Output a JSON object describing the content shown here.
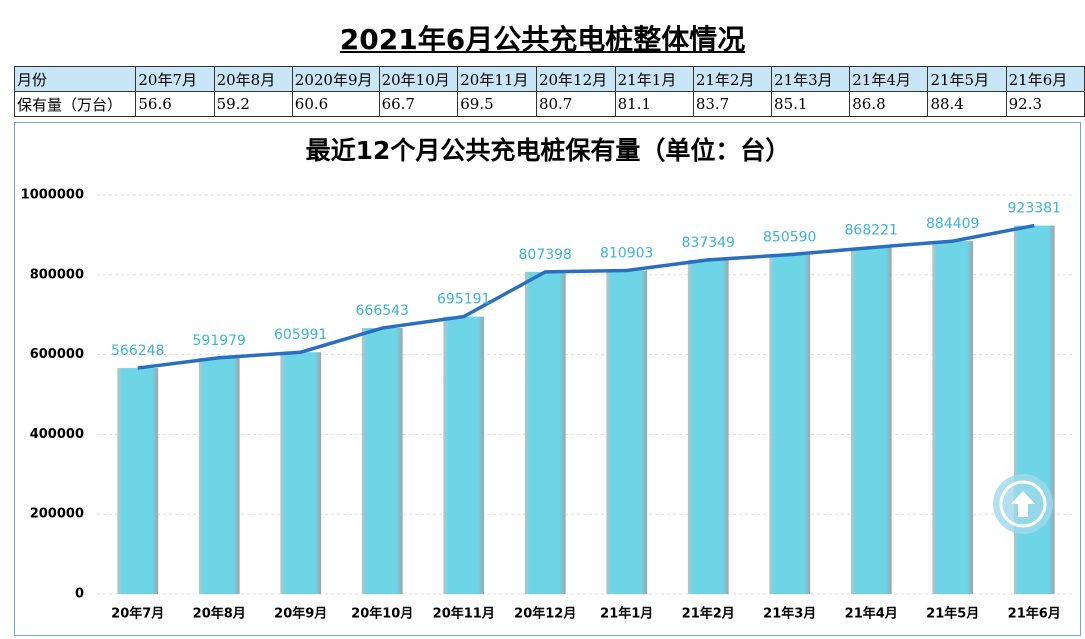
{
  "header": {
    "title": "2021年6月公共充电桩整体情况"
  },
  "table": {
    "header": [
      "月份",
      "20年7月",
      "20年8月",
      "2020年9月",
      "20年10月",
      "20年11月",
      "20年12月",
      "21年1月",
      "21年2月",
      "21年3月",
      "21年4月",
      "21年5月",
      "21年6月"
    ],
    "rows": [
      [
        "保有量（万台）",
        56.6,
        59.2,
        60.6,
        66.7,
        69.5,
        80.7,
        81.1,
        83.7,
        85.1,
        86.8,
        88.4,
        92.3
      ]
    ]
  },
  "chart_data": {
    "type": "bar",
    "title": "最近12个月公共充电桩保有量（单位：台）",
    "categories": [
      "20年7月",
      "20年8月",
      "20年9月",
      "20年10月",
      "20年11月",
      "20年12月",
      "21年1月",
      "21年2月",
      "21年3月",
      "21年4月",
      "21年5月",
      "21年6月"
    ],
    "values": [
      566248,
      591979,
      605991,
      666543,
      695191,
      807398,
      810903,
      837349,
      850590,
      868221,
      884409,
      923381
    ],
    "color": "#6dd5e6",
    "line_color": "#2a6ebf",
    "label_color": "#3cb4d8",
    "overlay_line": true,
    "data_labels": true,
    "ylim": [
      0,
      1000000
    ],
    "yticks": [
      0,
      200000,
      400000,
      600000,
      800000,
      1000000
    ],
    "grid": true
  }
}
